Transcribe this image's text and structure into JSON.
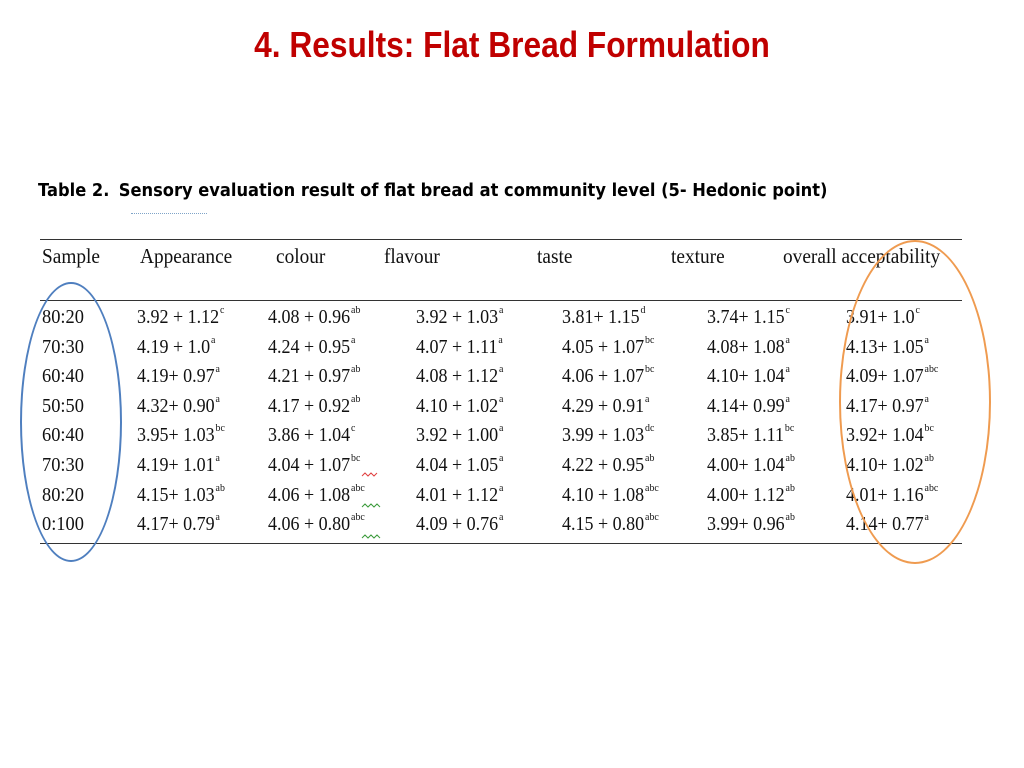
{
  "slide": {
    "title": "4. Results: Flat Bread Formulation",
    "caption_label": "Table 2.",
    "caption_text": "Sensory evaluation result of flat bread at community level (5- Hedonic point)"
  },
  "table": {
    "headers": [
      "Sample",
      "Appearance",
      "colour",
      "flavour",
      "taste",
      "texture",
      "overall acceptability"
    ],
    "rows": [
      {
        "sample": "80:20",
        "cells": [
          [
            "3.92 + 1.12",
            "c"
          ],
          [
            "4.08 + 0.96",
            "ab"
          ],
          [
            "3.92 + 1.03",
            "a"
          ],
          [
            "3.81+ 1.15",
            "d"
          ],
          [
            "3.74+ 1.15",
            "c"
          ],
          [
            "3.91+ 1.0",
            "c"
          ]
        ]
      },
      {
        "sample": "70:30",
        "cells": [
          [
            "4.19 + 1.0",
            "a"
          ],
          [
            "4.24 + 0.95",
            "a"
          ],
          [
            "4.07 + 1.11",
            "a"
          ],
          [
            "4.05 + 1.07",
            "bc"
          ],
          [
            "4.08+ 1.08",
            "a"
          ],
          [
            "4.13+ 1.05",
            "a"
          ]
        ]
      },
      {
        "sample": "60:40",
        "cells": [
          [
            "4.19+ 0.97",
            "a"
          ],
          [
            "4.21 + 0.97",
            "ab"
          ],
          [
            "4.08 + 1.12",
            "a"
          ],
          [
            "4.06 + 1.07",
            "bc"
          ],
          [
            "4.10+ 1.04",
            "a"
          ],
          [
            "4.09+ 1.07",
            "abc"
          ]
        ]
      },
      {
        "sample": "50:50",
        "cells": [
          [
            "4.32+ 0.90",
            "a"
          ],
          [
            "4.17 + 0.92",
            "ab"
          ],
          [
            "4.10 + 1.02",
            "a"
          ],
          [
            "4.29 + 0.91",
            "a"
          ],
          [
            "4.14+ 0.99",
            "a"
          ],
          [
            "4.17+ 0.97",
            "a"
          ]
        ]
      },
      {
        "sample": "60:40",
        "cells": [
          [
            "3.95+ 1.03",
            "bc"
          ],
          [
            "3.86 + 1.04",
            "c"
          ],
          [
            "3.92 + 1.00",
            "a"
          ],
          [
            "3.99 + 1.03",
            "dc"
          ],
          [
            "3.85+ 1.11",
            "bc"
          ],
          [
            "3.92+ 1.04",
            "bc"
          ]
        ]
      },
      {
        "sample": "70:30",
        "cells": [
          [
            "4.19+ 1.01",
            "a"
          ],
          [
            "4.04 + 1.07",
            "bc"
          ],
          [
            "4.04 + 1.05",
            "a"
          ],
          [
            "4.22 + 0.95",
            "ab"
          ],
          [
            "4.00+ 1.04",
            "ab"
          ],
          [
            "4.10+ 1.02",
            "ab"
          ]
        ]
      },
      {
        "sample": "80:20",
        "cells": [
          [
            "4.15+ 1.03",
            "ab"
          ],
          [
            "4.06 + 1.08",
            "abc"
          ],
          [
            "4.01 + 1.12",
            "a"
          ],
          [
            "4.10 + 1.08",
            "abc"
          ],
          [
            "4.00+ 1.12",
            "ab"
          ],
          [
            "4.01+ 1.16",
            "abc"
          ]
        ]
      },
      {
        "sample": "0:100",
        "cells": [
          [
            "4.17+ 0.79",
            "a"
          ],
          [
            "4.06 + 0.80",
            "abc"
          ],
          [
            "4.09 + 0.76",
            "a"
          ],
          [
            "4.15 + 0.80",
            "abc"
          ],
          [
            "3.99+ 0.96",
            "ab"
          ],
          [
            "4.14+ 0.77",
            "a"
          ]
        ]
      }
    ]
  },
  "colors": {
    "title": "#c00000",
    "sample_highlight": "#4f7fbf",
    "acceptability_highlight": "#ef9b50",
    "spellcheck_red": "#e04040",
    "spellcheck_green": "#3a9a3a"
  }
}
